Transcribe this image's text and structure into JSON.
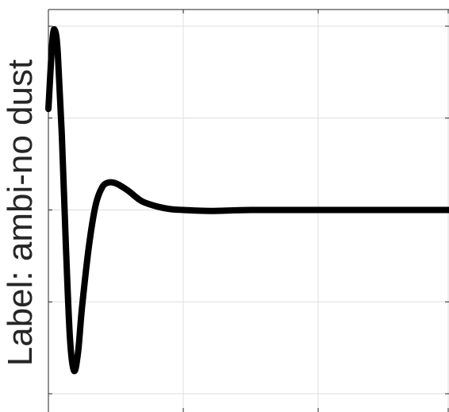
{
  "chart_data": {
    "type": "line",
    "title": "",
    "xlabel": "",
    "ylabel": "Label: ambi-no dust",
    "grid": true,
    "xlim": [
      0,
      3
    ],
    "ylim": [
      -2,
      2
    ],
    "xticks": [
      0,
      1,
      2,
      3
    ],
    "yticks": [
      -2,
      -1,
      0,
      1,
      2
    ],
    "series": [
      {
        "color": "#000000",
        "x": [
          0,
          0.03,
          0.05,
          0.07,
          0.1,
          0.13,
          0.16,
          0.19,
          0.22,
          0.25,
          0.3,
          0.35,
          0.4,
          0.45,
          0.5,
          0.55,
          0.6,
          0.65,
          0.7,
          0.8,
          0.9,
          1.0,
          1.2,
          1.5,
          2.0,
          2.5,
          3.0
        ],
        "y": [
          1.1,
          1.85,
          1.95,
          1.7,
          0.8,
          -0.4,
          -1.4,
          -1.75,
          -1.55,
          -1.05,
          -0.4,
          0.05,
          0.25,
          0.3,
          0.29,
          0.25,
          0.2,
          0.14,
          0.09,
          0.04,
          0.01,
          0.0,
          -0.01,
          0.0,
          0.0,
          0.0,
          0.0
        ]
      }
    ]
  }
}
